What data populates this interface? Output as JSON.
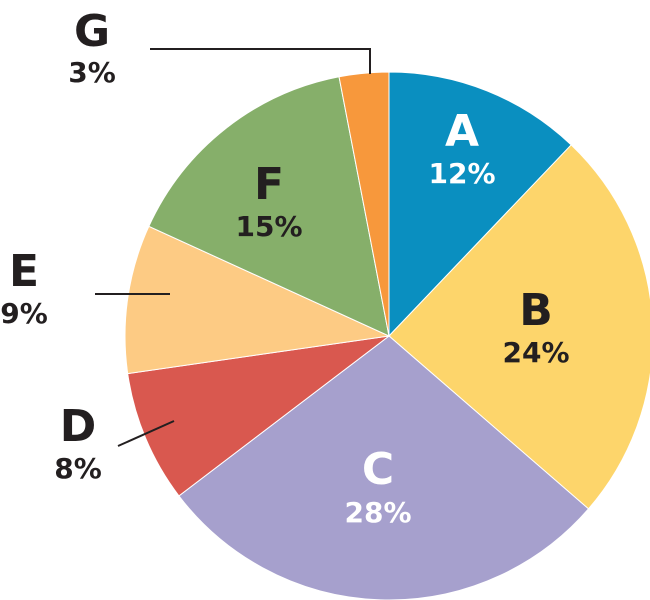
{
  "chart_data": {
    "type": "pie",
    "start": "12 o'clock",
    "direction": "clockwise",
    "slices": [
      {
        "label": "A",
        "percent_label": "12%",
        "value": 12,
        "color": "#0a8fc0",
        "text_color": "#ffffff"
      },
      {
        "label": "B",
        "percent_label": "24%",
        "value": 24,
        "color": "#fdd56b",
        "text_color": "#231f20"
      },
      {
        "label": "C",
        "percent_label": "28%",
        "value": 28,
        "color": "#a6a0cd",
        "text_color": "#ffffff"
      },
      {
        "label": "D",
        "percent_label": "8%",
        "value": 8,
        "color": "#d9584f",
        "text_color": "#231f20"
      },
      {
        "label": "E",
        "percent_label": "9%",
        "value": 9,
        "color": "#fdcb84",
        "text_color": "#231f20"
      },
      {
        "label": "F",
        "percent_label": "15%",
        "value": 15,
        "color": "#86af6a",
        "text_color": "#231f20"
      },
      {
        "label": "G",
        "percent_label": "3%",
        "value": 3,
        "color": "#f7983c",
        "text_color": "#231f20"
      }
    ]
  }
}
